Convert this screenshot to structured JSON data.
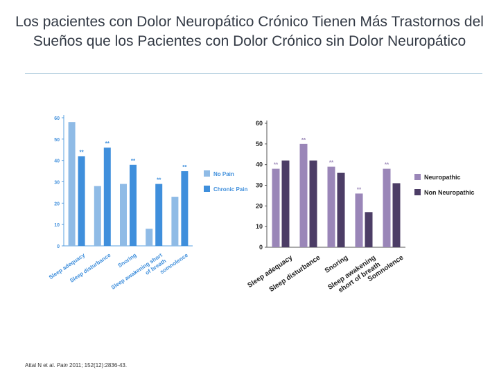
{
  "slide": {
    "title": "Los pacientes con Dolor Neuropático Crónico Tienen Más Trastornos del Sueños que los Pacientes con Dolor Crónico sin Dolor Neuropático",
    "citation_prefix": "Attal N et al. ",
    "citation_journal": "Pain",
    "citation_suffix": " 2011; 152(12):2836-43."
  },
  "chart_data": [
    {
      "type": "bar",
      "categories": [
        "Sleep adequacy",
        "Sleep disturbance",
        "Snoring",
        "Sleep awakening short of breath",
        "somnolence"
      ],
      "category_lines": [
        [
          "Sleep adequacy"
        ],
        [
          "Sleep disturbance"
        ],
        [
          "Snoring"
        ],
        [
          "Sleep awakening short",
          "of breath"
        ],
        [
          "somnolence"
        ]
      ],
      "series": [
        {
          "name": "No Pain",
          "values": [
            58,
            28,
            29,
            8,
            23
          ],
          "color": "#8fbbe6"
        },
        {
          "name": "Chronic Pain",
          "values": [
            42,
            46,
            38,
            29,
            35
          ],
          "color": "#3f8fdc",
          "significance": [
            "**",
            "**",
            "**",
            "**",
            "**"
          ]
        }
      ],
      "ylim": [
        0,
        60
      ],
      "yticks": [
        0,
        10,
        20,
        30,
        40,
        50,
        60
      ],
      "grid": false,
      "legend_position": "right",
      "axis_color": "#5aa0e0",
      "label_color": "#3f8fdc",
      "significance_color": "#3f8fdc"
    },
    {
      "type": "bar",
      "categories": [
        "Sleep adequacy",
        "Sleep disturbance",
        "Snoring",
        "Sleep awakening short of breath",
        "Somnolence"
      ],
      "category_lines": [
        [
          "Sleep adequacy"
        ],
        [
          "Sleep disturbance"
        ],
        [
          "Snoring"
        ],
        [
          "Sleep awakening",
          "short of breath"
        ],
        [
          "Somnolence"
        ]
      ],
      "series": [
        {
          "name": "Neuropathic",
          "values": [
            38,
            50,
            39,
            26,
            38
          ],
          "color": "#9a86b8",
          "significance": [
            "**",
            "**",
            "**",
            "**",
            "**"
          ]
        },
        {
          "name": "Non Neuropathic",
          "values": [
            42,
            42,
            36,
            17,
            31
          ],
          "color": "#4c3d66"
        }
      ],
      "ylim": [
        0,
        60
      ],
      "yticks": [
        0,
        10,
        20,
        30,
        40,
        50,
        60
      ],
      "grid": false,
      "legend_position": "right",
      "axis_color": "#555555",
      "label_color": "#222222",
      "significance_color": "#9a86b8"
    }
  ]
}
